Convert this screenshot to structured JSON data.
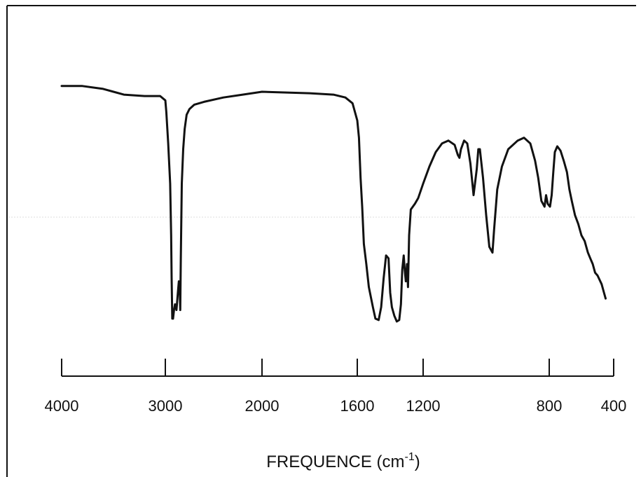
{
  "chart_data": {
    "type": "line",
    "title": "",
    "ylabel": "",
    "xlabel": {
      "main": "FREQUENCE (cm",
      "superscript": "-1",
      "close": ")"
    },
    "x_axis_scale": "piecewise-linear (4000–2000, 2000–400 with expanded scale)",
    "x_axis_reversed": true,
    "x_ticks": [
      4000,
      3000,
      2000,
      1600,
      1200,
      800,
      400
    ],
    "tick_labels": [
      "4000",
      "3000",
      "2000",
      "1600",
      "1200",
      "800",
      "400"
    ],
    "grid": false,
    "y_units": "relative transmittance (0 bottom, 100 top), no printed scale",
    "series": [
      {
        "color": "#111111",
        "points": [
          [
            4000,
            92
          ],
          [
            3800,
            92
          ],
          [
            3600,
            91
          ],
          [
            3500,
            90
          ],
          [
            3400,
            89
          ],
          [
            3200,
            88.5
          ],
          [
            3050,
            88.5
          ],
          [
            3000,
            87
          ],
          [
            2990,
            83
          ],
          [
            2970,
            72
          ],
          [
            2950,
            58
          ],
          [
            2940,
            40
          ],
          [
            2935,
            25
          ],
          [
            2928,
            11
          ],
          [
            2920,
            11
          ],
          [
            2910,
            14
          ],
          [
            2900,
            16
          ],
          [
            2885,
            14
          ],
          [
            2870,
            20
          ],
          [
            2860,
            24
          ],
          [
            2852,
            22
          ],
          [
            2846,
            14
          ],
          [
            2840,
            32
          ],
          [
            2830,
            58
          ],
          [
            2815,
            70
          ],
          [
            2800,
            77
          ],
          [
            2780,
            82
          ],
          [
            2750,
            84
          ],
          [
            2700,
            85.5
          ],
          [
            2600,
            86.5
          ],
          [
            2400,
            88
          ],
          [
            2200,
            89
          ],
          [
            2000,
            90
          ],
          [
            1800,
            89.5
          ],
          [
            1700,
            89
          ],
          [
            1650,
            88
          ],
          [
            1620,
            86
          ],
          [
            1600,
            80
          ],
          [
            1590,
            74
          ],
          [
            1580,
            60
          ],
          [
            1570,
            50
          ],
          [
            1560,
            37
          ],
          [
            1545,
            30
          ],
          [
            1530,
            22
          ],
          [
            1505,
            15
          ],
          [
            1490,
            11
          ],
          [
            1470,
            10.5
          ],
          [
            1455,
            15
          ],
          [
            1440,
            25
          ],
          [
            1425,
            33
          ],
          [
            1410,
            32
          ],
          [
            1400,
            20
          ],
          [
            1390,
            15
          ],
          [
            1375,
            12
          ],
          [
            1360,
            10
          ],
          [
            1345,
            10.5
          ],
          [
            1335,
            16
          ],
          [
            1327,
            28
          ],
          [
            1318,
            33
          ],
          [
            1312,
            28
          ],
          [
            1305,
            24
          ],
          [
            1298,
            30
          ],
          [
            1292,
            22
          ],
          [
            1285,
            40
          ],
          [
            1275,
            49
          ],
          [
            1250,
            51
          ],
          [
            1230,
            53
          ],
          [
            1200,
            58
          ],
          [
            1180,
            64
          ],
          [
            1160,
            69
          ],
          [
            1140,
            72
          ],
          [
            1120,
            73
          ],
          [
            1100,
            71.5
          ],
          [
            1090,
            68
          ],
          [
            1085,
            67
          ],
          [
            1080,
            70
          ],
          [
            1070,
            73
          ],
          [
            1060,
            72
          ],
          [
            1050,
            65
          ],
          [
            1040,
            54
          ],
          [
            1030,
            63
          ],
          [
            1025,
            70
          ],
          [
            1020,
            70
          ],
          [
            1010,
            60
          ],
          [
            1000,
            47
          ],
          [
            990,
            36
          ],
          [
            980,
            34
          ],
          [
            975,
            42
          ],
          [
            965,
            56
          ],
          [
            950,
            64
          ],
          [
            930,
            70
          ],
          [
            900,
            73
          ],
          [
            880,
            74
          ],
          [
            860,
            72
          ],
          [
            845,
            66
          ],
          [
            835,
            60
          ],
          [
            825,
            52
          ],
          [
            815,
            50
          ],
          [
            810,
            54
          ],
          [
            805,
            51
          ],
          [
            795,
            50
          ],
          [
            785,
            54
          ],
          [
            775,
            62
          ],
          [
            765,
            69
          ],
          [
            750,
            71
          ],
          [
            730,
            69.5
          ],
          [
            710,
            66
          ],
          [
            690,
            62
          ],
          [
            675,
            56
          ],
          [
            660,
            52
          ],
          [
            640,
            47
          ],
          [
            620,
            44
          ],
          [
            600,
            40
          ],
          [
            580,
            38
          ],
          [
            560,
            34
          ],
          [
            545,
            32
          ],
          [
            530,
            30
          ],
          [
            515,
            27
          ],
          [
            500,
            26
          ],
          [
            475,
            23
          ],
          [
            460,
            20
          ],
          [
            450,
            18
          ]
        ]
      }
    ]
  }
}
